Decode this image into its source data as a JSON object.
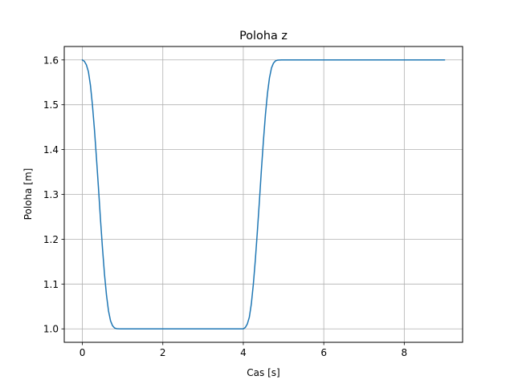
{
  "chart_data": {
    "type": "line",
    "title": "Poloha z",
    "xlabel": "Cas [s]",
    "ylabel": "Poloha [m]",
    "xlim": [
      -0.45,
      9.45
    ],
    "ylim": [
      0.97,
      1.63
    ],
    "xticks": [
      0,
      2,
      4,
      6,
      8
    ],
    "xtick_labels": [
      "0",
      "2",
      "4",
      "6",
      "8"
    ],
    "yticks": [
      1.0,
      1.1,
      1.2,
      1.3,
      1.4,
      1.5,
      1.6
    ],
    "ytick_labels": [
      "1.0",
      "1.1",
      "1.2",
      "1.3",
      "1.4",
      "1.5",
      "1.6"
    ],
    "grid": true,
    "series": [
      {
        "color": "#1f77b4",
        "x": [
          0.0,
          0.05,
          0.1,
          0.15,
          0.2,
          0.25,
          0.3,
          0.35,
          0.4,
          0.45,
          0.5,
          0.55,
          0.6,
          0.65,
          0.7,
          0.75,
          0.8,
          0.85,
          0.9,
          0.95,
          1.0,
          2.0,
          3.0,
          4.0,
          4.05,
          4.1,
          4.15,
          4.2,
          4.25,
          4.3,
          4.35,
          4.4,
          4.45,
          4.5,
          4.55,
          4.6,
          4.65,
          4.7,
          4.75,
          4.8,
          4.85,
          4.9,
          4.95,
          5.0,
          6.0,
          7.0,
          8.0,
          9.0
        ],
        "y": [
          1.6,
          1.597,
          1.589,
          1.574,
          1.544,
          1.5,
          1.445,
          1.382,
          1.315,
          1.245,
          1.18,
          1.122,
          1.075,
          1.04,
          1.018,
          1.007,
          1.002,
          1.0005,
          1.0001,
          1.0,
          1.0,
          1.0,
          1.0,
          1.0,
          1.003,
          1.011,
          1.026,
          1.056,
          1.1,
          1.155,
          1.218,
          1.285,
          1.355,
          1.42,
          1.478,
          1.525,
          1.56,
          1.582,
          1.593,
          1.598,
          1.5995,
          1.5999,
          1.6,
          1.6,
          1.6,
          1.6,
          1.6,
          1.6
        ]
      }
    ]
  }
}
